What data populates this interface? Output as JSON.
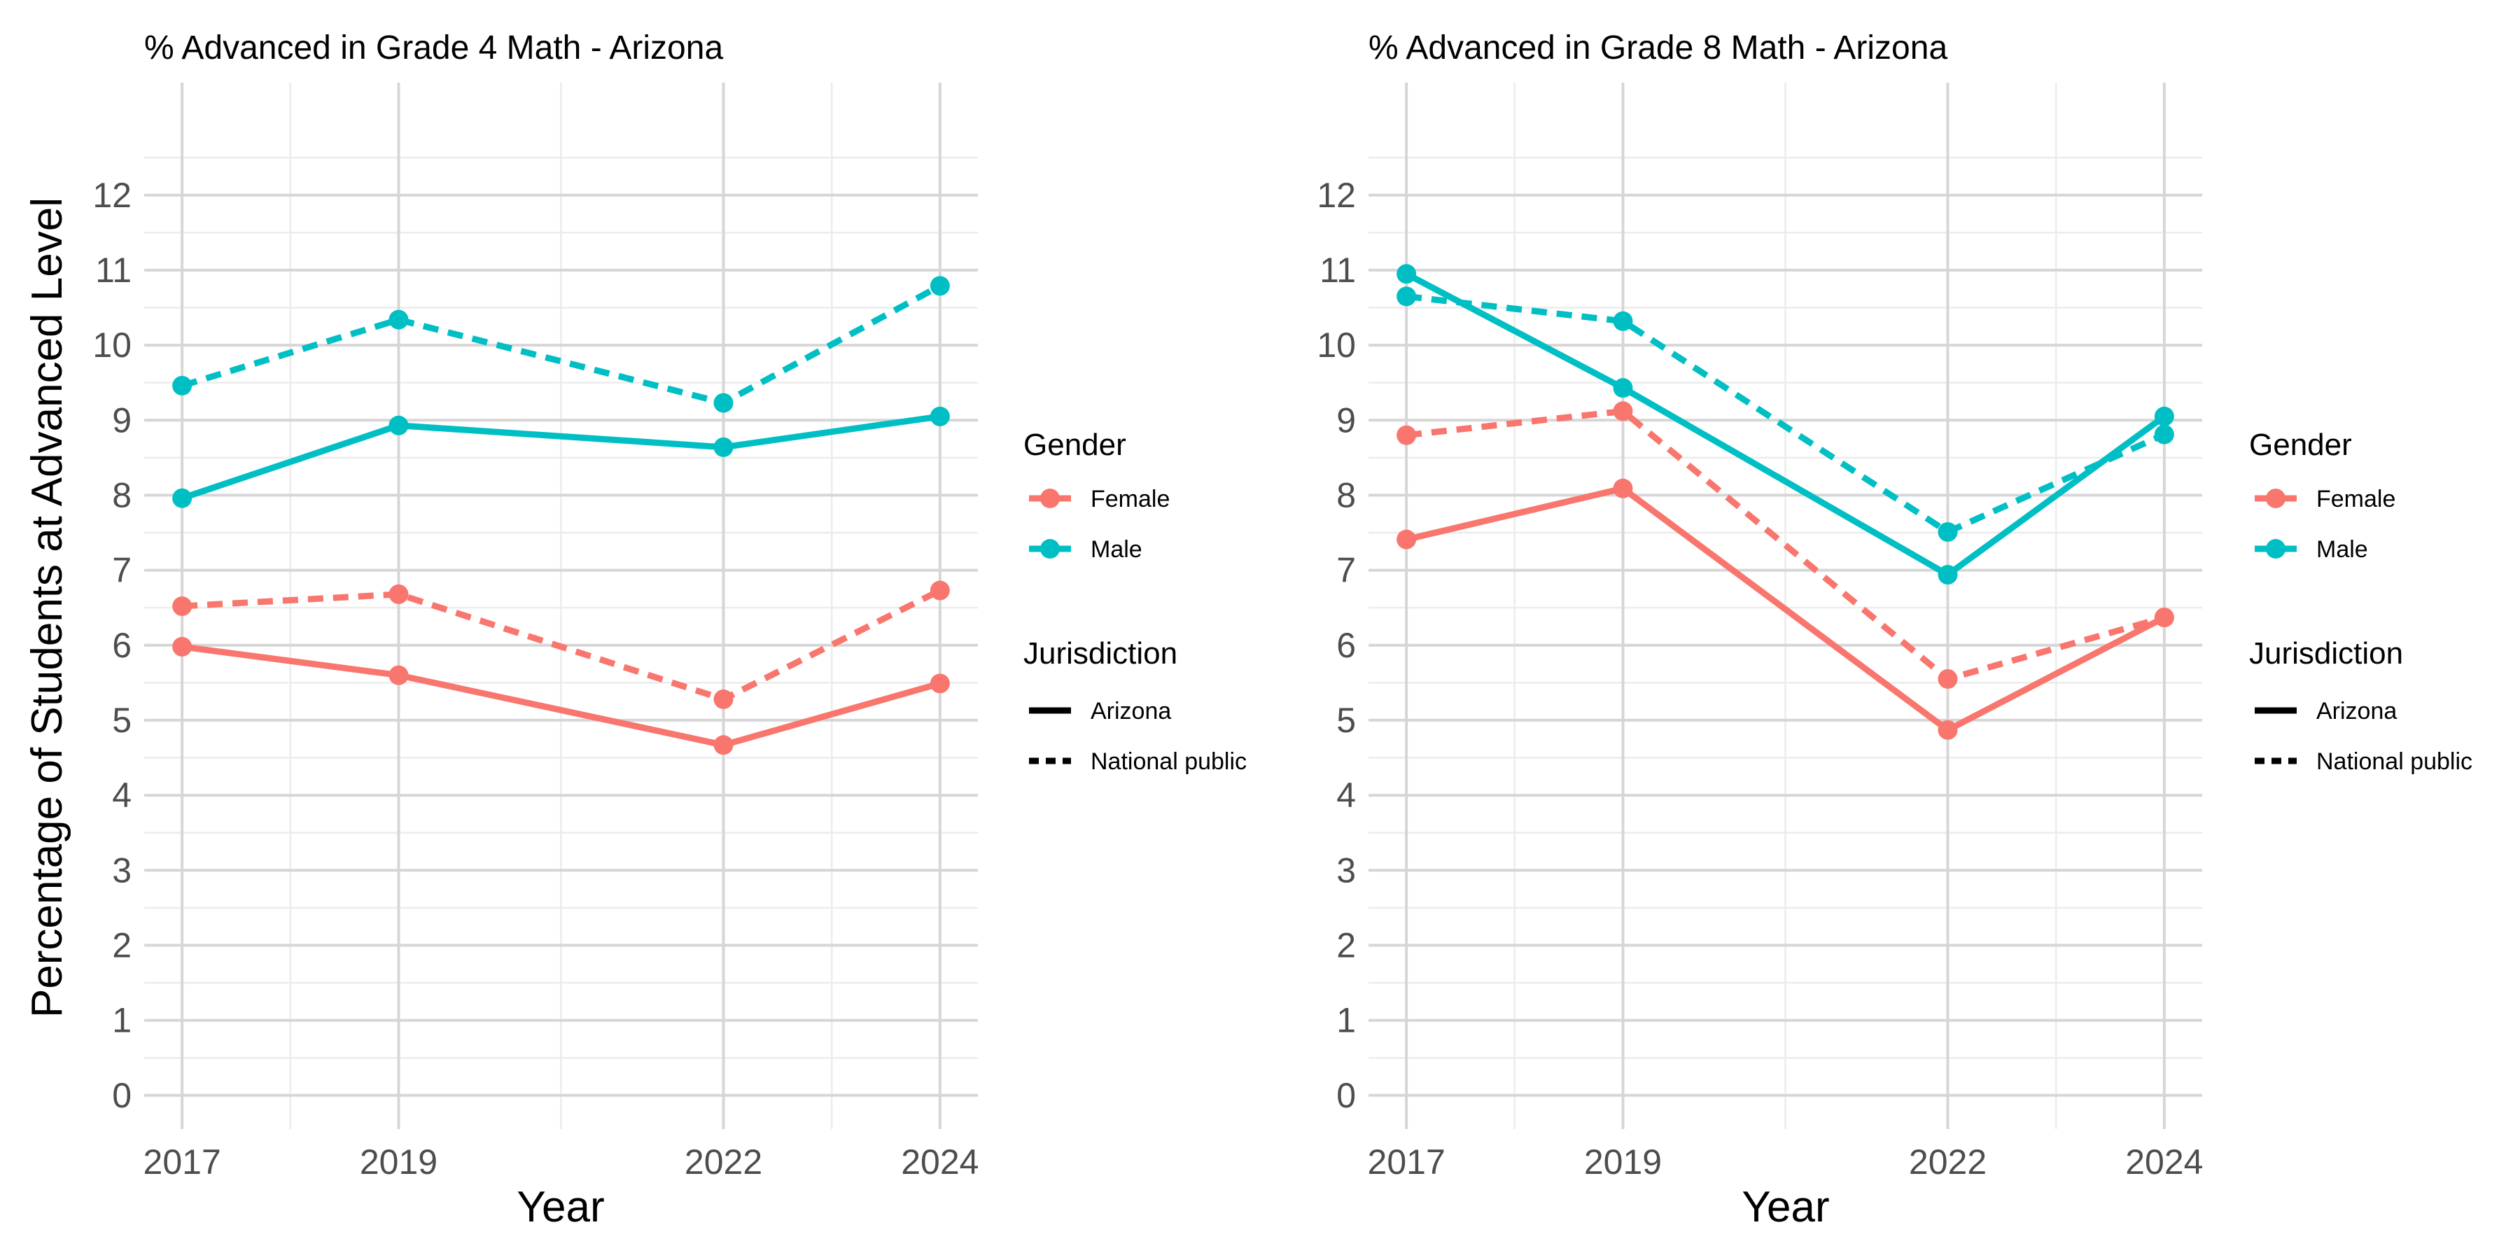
{
  "colors": {
    "female": "#F8766D",
    "male": "#00BFC4",
    "grid_major": "#d6d6d6",
    "grid_minor": "#ececec",
    "text": "#000000",
    "tick_text": "#4d4d4d"
  },
  "shared": {
    "ylabel": "Percentage of Students at Advanced Level",
    "legend": {
      "gender_title": "Gender",
      "gender_items": [
        {
          "label": "Female",
          "color": "#F8766D"
        },
        {
          "label": "Male",
          "color": "#00BFC4"
        }
      ],
      "jurisdiction_title": "Jurisdiction",
      "jurisdiction_items": [
        {
          "label": "Arizona",
          "linetype": "solid"
        },
        {
          "label": "National public",
          "linetype": "dashed"
        }
      ]
    }
  },
  "chart_data": [
    {
      "type": "line",
      "title": "% Advanced in Grade 4 Math - Arizona",
      "xlabel": "Year",
      "ylabel": "Percentage of Students at Advanced Level",
      "x": [
        2017,
        2019,
        2022,
        2024
      ],
      "xlim": [
        2016.65,
        2024.35
      ],
      "ylim": [
        -0.45,
        13.5
      ],
      "yticks": [
        0,
        1,
        2,
        3,
        4,
        5,
        6,
        7,
        8,
        9,
        10,
        11,
        12
      ],
      "grid": true,
      "legend_position": "right",
      "series": [
        {
          "name": "Female - Arizona",
          "gender": "Female",
          "jurisdiction": "Arizona",
          "values": [
            5.98,
            5.6,
            4.67,
            5.49
          ]
        },
        {
          "name": "Female - National public",
          "gender": "Female",
          "jurisdiction": "National public",
          "values": [
            6.52,
            6.68,
            5.28,
            6.73
          ]
        },
        {
          "name": "Male - Arizona",
          "gender": "Male",
          "jurisdiction": "Arizona",
          "values": [
            7.96,
            8.93,
            8.64,
            9.05
          ]
        },
        {
          "name": "Male - National public",
          "gender": "Male",
          "jurisdiction": "National public",
          "values": [
            9.46,
            10.34,
            9.23,
            10.79
          ]
        }
      ]
    },
    {
      "type": "line",
      "title": "% Advanced in Grade 8 Math - Arizona",
      "xlabel": "Year",
      "ylabel": "",
      "x": [
        2017,
        2019,
        2022,
        2024
      ],
      "xlim": [
        2016.65,
        2024.35
      ],
      "ylim": [
        -0.45,
        13.5
      ],
      "yticks": [
        0,
        1,
        2,
        3,
        4,
        5,
        6,
        7,
        8,
        9,
        10,
        11,
        12
      ],
      "grid": true,
      "legend_position": "right",
      "series": [
        {
          "name": "Female - Arizona",
          "gender": "Female",
          "jurisdiction": "Arizona",
          "values": [
            7.41,
            8.09,
            4.87,
            6.37
          ]
        },
        {
          "name": "Female - National public",
          "gender": "Female",
          "jurisdiction": "National public",
          "values": [
            8.8,
            9.12,
            5.55,
            6.37
          ]
        },
        {
          "name": "Male - Arizona",
          "gender": "Male",
          "jurisdiction": "Arizona",
          "values": [
            10.95,
            9.43,
            6.94,
            9.05
          ]
        },
        {
          "name": "Male - National public",
          "gender": "Male",
          "jurisdiction": "National public",
          "values": [
            10.65,
            10.32,
            7.51,
            8.81
          ]
        }
      ]
    }
  ]
}
